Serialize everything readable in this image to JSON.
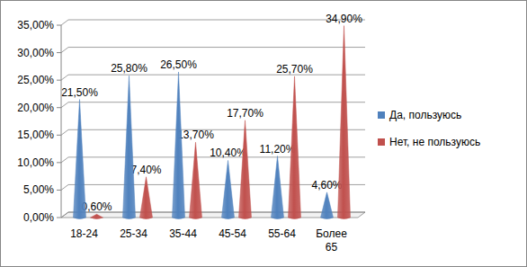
{
  "chart_data": {
    "type": "bar",
    "categories": [
      "18-24",
      "25-34",
      "35-44",
      "45-54",
      "55-64",
      "Более 65"
    ],
    "series": [
      {
        "name": "Да, пользуюсь",
        "color": "#4f81bd",
        "values": [
          21.5,
          25.8,
          26.5,
          10.4,
          11.2,
          4.6
        ],
        "value_labels": [
          "21,50%",
          "25,80%",
          "26,50%",
          "10,40%",
          "11,20%",
          "4,60%"
        ]
      },
      {
        "name": "Нет, не пользуюсь",
        "color": "#c0504d",
        "values": [
          0.6,
          7.4,
          13.7,
          17.7,
          25.7,
          34.9
        ],
        "value_labels": [
          "0,60%",
          "7,40%",
          "13,70%",
          "17,70%",
          "25,70%",
          "34,90%"
        ]
      }
    ],
    "ylim": [
      0,
      35
    ],
    "yticks": [
      {
        "value": 0,
        "label": "0,00%"
      },
      {
        "value": 5,
        "label": "5,00%"
      },
      {
        "value": 10,
        "label": "10,00%"
      },
      {
        "value": 15,
        "label": "15,00%"
      },
      {
        "value": 20,
        "label": "20,00%"
      },
      {
        "value": 25,
        "label": "25,00%"
      },
      {
        "value": 30,
        "label": "30,00%"
      },
      {
        "value": 35,
        "label": "35,00%"
      }
    ],
    "grid": true,
    "legend": "right",
    "data_labels": true
  }
}
